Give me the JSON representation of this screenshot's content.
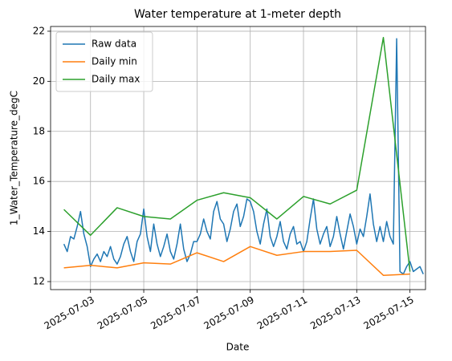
{
  "chart_data": {
    "type": "line",
    "title": "Water temperature at 1-meter depth",
    "x_label": "Date",
    "y_label": "1_Water_Temperature_degC",
    "grid": true,
    "legend": "upper left",
    "xlim": [
      "2025-07-01 12:00",
      "2025-07-15 14:00"
    ],
    "xticks": [
      "2025-07-03",
      "2025-07-05",
      "2025-07-07",
      "2025-07-09",
      "2025-07-11",
      "2025-07-13",
      "2025-07-15"
    ],
    "ylim": [
      11.68,
      22.19
    ],
    "yticks": [
      12,
      14,
      16,
      18,
      20,
      22
    ],
    "series": [
      {
        "name": "Raw data",
        "color": "#1f77b4",
        "x": [
          "2025-07-02 00:00",
          "2025-07-02 03:00",
          "2025-07-02 06:00",
          "2025-07-02 09:00",
          "2025-07-02 12:00",
          "2025-07-02 15:00",
          "2025-07-02 18:00",
          "2025-07-02 21:00",
          "2025-07-03 00:00",
          "2025-07-03 03:00",
          "2025-07-03 06:00",
          "2025-07-03 09:00",
          "2025-07-03 12:00",
          "2025-07-03 15:00",
          "2025-07-03 18:00",
          "2025-07-03 21:00",
          "2025-07-04 00:00",
          "2025-07-04 03:00",
          "2025-07-04 06:00",
          "2025-07-04 09:00",
          "2025-07-04 12:00",
          "2025-07-04 15:00",
          "2025-07-04 18:00",
          "2025-07-04 21:00",
          "2025-07-05 00:00",
          "2025-07-05 03:00",
          "2025-07-05 06:00",
          "2025-07-05 09:00",
          "2025-07-05 12:00",
          "2025-07-05 15:00",
          "2025-07-05 18:00",
          "2025-07-05 21:00",
          "2025-07-06 00:00",
          "2025-07-06 03:00",
          "2025-07-06 06:00",
          "2025-07-06 09:00",
          "2025-07-06 12:00",
          "2025-07-06 15:00",
          "2025-07-06 18:00",
          "2025-07-06 21:00",
          "2025-07-07 00:00",
          "2025-07-07 03:00",
          "2025-07-07 06:00",
          "2025-07-07 09:00",
          "2025-07-07 12:00",
          "2025-07-07 15:00",
          "2025-07-07 18:00",
          "2025-07-07 21:00",
          "2025-07-08 00:00",
          "2025-07-08 03:00",
          "2025-07-08 06:00",
          "2025-07-08 09:00",
          "2025-07-08 12:00",
          "2025-07-08 15:00",
          "2025-07-08 18:00",
          "2025-07-08 21:00",
          "2025-07-09 00:00",
          "2025-07-09 03:00",
          "2025-07-09 06:00",
          "2025-07-09 09:00",
          "2025-07-09 12:00",
          "2025-07-09 15:00",
          "2025-07-09 18:00",
          "2025-07-09 21:00",
          "2025-07-10 00:00",
          "2025-07-10 03:00",
          "2025-07-10 06:00",
          "2025-07-10 09:00",
          "2025-07-10 12:00",
          "2025-07-10 15:00",
          "2025-07-10 18:00",
          "2025-07-10 21:00",
          "2025-07-11 00:00",
          "2025-07-11 03:00",
          "2025-07-11 06:00",
          "2025-07-11 09:00",
          "2025-07-11 12:00",
          "2025-07-11 15:00",
          "2025-07-11 18:00",
          "2025-07-11 21:00",
          "2025-07-12 00:00",
          "2025-07-12 03:00",
          "2025-07-12 06:00",
          "2025-07-12 09:00",
          "2025-07-12 12:00",
          "2025-07-12 15:00",
          "2025-07-12 18:00",
          "2025-07-12 21:00",
          "2025-07-13 00:00",
          "2025-07-13 03:00",
          "2025-07-13 06:00",
          "2025-07-13 09:00",
          "2025-07-13 12:00",
          "2025-07-13 15:00",
          "2025-07-13 18:00",
          "2025-07-13 21:00",
          "2025-07-14 00:00",
          "2025-07-14 03:00",
          "2025-07-14 06:00",
          "2025-07-14 09:00",
          "2025-07-14 12:00",
          "2025-07-14 15:00",
          "2025-07-14 18:00",
          "2025-07-14 21:00",
          "2025-07-15 00:00",
          "2025-07-15 03:00",
          "2025-07-15 06:00",
          "2025-07-15 09:00",
          "2025-07-15 12:00"
        ],
        "values": [
          13.5,
          13.2,
          13.8,
          13.7,
          14.2,
          14.8,
          13.9,
          13.4,
          12.6,
          12.9,
          13.1,
          12.8,
          13.2,
          13.0,
          13.4,
          12.9,
          12.7,
          13.0,
          13.5,
          13.8,
          13.2,
          12.8,
          13.6,
          13.9,
          14.9,
          13.8,
          13.2,
          14.3,
          13.5,
          13.0,
          13.4,
          13.9,
          13.2,
          12.9,
          13.5,
          14.3,
          13.3,
          12.8,
          13.1,
          13.6,
          13.6,
          13.9,
          14.5,
          14.0,
          13.7,
          14.8,
          15.2,
          14.5,
          14.3,
          13.6,
          14.1,
          14.8,
          15.1,
          14.2,
          14.6,
          15.3,
          15.2,
          14.8,
          14.0,
          13.5,
          14.3,
          14.9,
          13.8,
          13.4,
          13.8,
          14.4,
          13.6,
          13.3,
          13.9,
          14.2,
          13.5,
          13.6,
          13.2,
          13.6,
          14.5,
          15.3,
          14.1,
          13.5,
          13.9,
          14.2,
          13.4,
          13.8,
          14.6,
          13.9,
          13.3,
          14.0,
          14.7,
          14.2,
          13.5,
          14.1,
          13.8,
          14.6,
          15.5,
          14.3,
          13.6,
          14.2,
          13.6,
          14.4,
          13.8,
          13.5,
          21.7,
          12.4,
          12.3,
          12.6,
          12.8,
          12.4,
          12.5,
          12.6,
          12.3
        ]
      },
      {
        "name": "Daily min",
        "color": "#ff7f0e",
        "x": [
          "2025-07-02",
          "2025-07-03",
          "2025-07-04",
          "2025-07-05",
          "2025-07-06",
          "2025-07-07",
          "2025-07-08",
          "2025-07-09",
          "2025-07-10",
          "2025-07-11",
          "2025-07-12",
          "2025-07-13",
          "2025-07-14",
          "2025-07-15"
        ],
        "values": [
          12.55,
          12.65,
          12.55,
          12.75,
          12.7,
          13.15,
          12.8,
          13.4,
          13.05,
          13.2,
          13.2,
          13.25,
          12.25,
          12.3
        ]
      },
      {
        "name": "Daily max",
        "color": "#2ca02c",
        "x": [
          "2025-07-02",
          "2025-07-03",
          "2025-07-04",
          "2025-07-05",
          "2025-07-06",
          "2025-07-07",
          "2025-07-08",
          "2025-07-09",
          "2025-07-10",
          "2025-07-11",
          "2025-07-12",
          "2025-07-13",
          "2025-07-14",
          "2025-07-15"
        ],
        "values": [
          14.88,
          13.85,
          14.95,
          14.6,
          14.5,
          15.25,
          15.55,
          15.35,
          14.5,
          15.4,
          15.1,
          15.65,
          21.75,
          12.4
        ]
      }
    ]
  }
}
